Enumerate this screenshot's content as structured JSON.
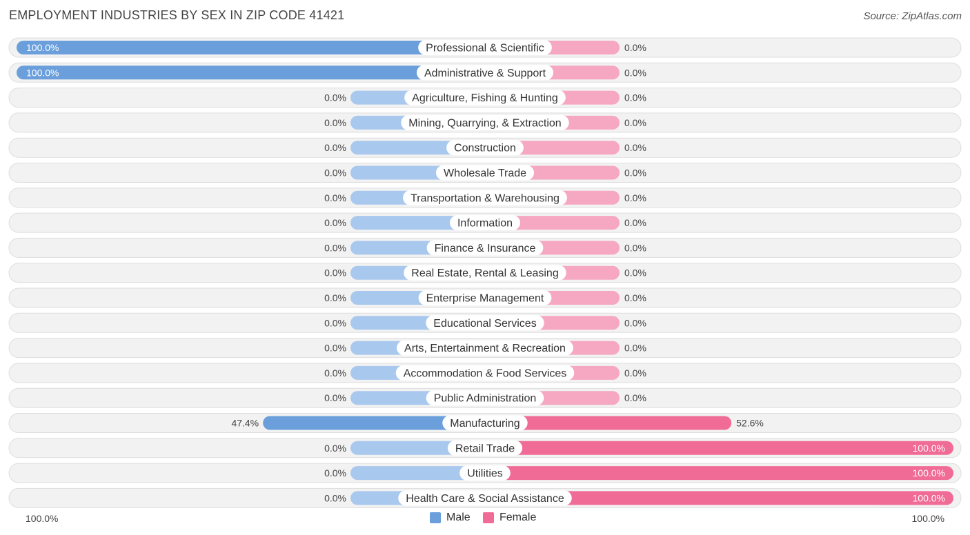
{
  "header": {
    "title": "EMPLOYMENT INDUSTRIES BY SEX IN ZIP CODE 41421",
    "source": "Source: ZipAtlas.com"
  },
  "colors": {
    "male_strong": "#6a9fdc",
    "male_light": "#a9c8ee",
    "female_strong": "#f06b96",
    "female_light": "#f6a7c1",
    "row_bg": "#f2f2f2",
    "row_border": "#dddddd"
  },
  "legend": {
    "male": "Male",
    "female": "Female"
  },
  "axis": {
    "left_label": "100.0%",
    "right_label": "100.0%"
  },
  "chart_data": {
    "type": "bar",
    "orientation": "horizontal-diverging",
    "title": "EMPLOYMENT INDUSTRIES BY SEX IN ZIP CODE 41421",
    "xlim": [
      -100,
      100
    ],
    "categories": [
      "Professional & Scientific",
      "Administrative & Support",
      "Agriculture, Fishing & Hunting",
      "Mining, Quarrying, & Extraction",
      "Construction",
      "Wholesale Trade",
      "Transportation & Warehousing",
      "Information",
      "Finance & Insurance",
      "Real Estate, Rental & Leasing",
      "Enterprise Management",
      "Educational Services",
      "Arts, Entertainment & Recreation",
      "Accommodation & Food Services",
      "Public Administration",
      "Manufacturing",
      "Retail Trade",
      "Utilities",
      "Health Care & Social Assistance"
    ],
    "series": [
      {
        "name": "Male",
        "values": [
          100,
          100,
          0,
          0,
          0,
          0,
          0,
          0,
          0,
          0,
          0,
          0,
          0,
          0,
          0,
          47.4,
          0,
          0,
          0
        ],
        "labels": [
          "100.0%",
          "100.0%",
          "0.0%",
          "0.0%",
          "0.0%",
          "0.0%",
          "0.0%",
          "0.0%",
          "0.0%",
          "0.0%",
          "0.0%",
          "0.0%",
          "0.0%",
          "0.0%",
          "0.0%",
          "47.4%",
          "0.0%",
          "0.0%",
          "0.0%"
        ]
      },
      {
        "name": "Female",
        "values": [
          0,
          0,
          0,
          0,
          0,
          0,
          0,
          0,
          0,
          0,
          0,
          0,
          0,
          0,
          0,
          52.6,
          100,
          100,
          100
        ],
        "labels": [
          "0.0%",
          "0.0%",
          "0.0%",
          "0.0%",
          "0.0%",
          "0.0%",
          "0.0%",
          "0.0%",
          "0.0%",
          "0.0%",
          "0.0%",
          "0.0%",
          "0.0%",
          "0.0%",
          "0.0%",
          "52.6%",
          "100.0%",
          "100.0%",
          "100.0%"
        ]
      }
    ],
    "legend_position": "bottom-center"
  }
}
